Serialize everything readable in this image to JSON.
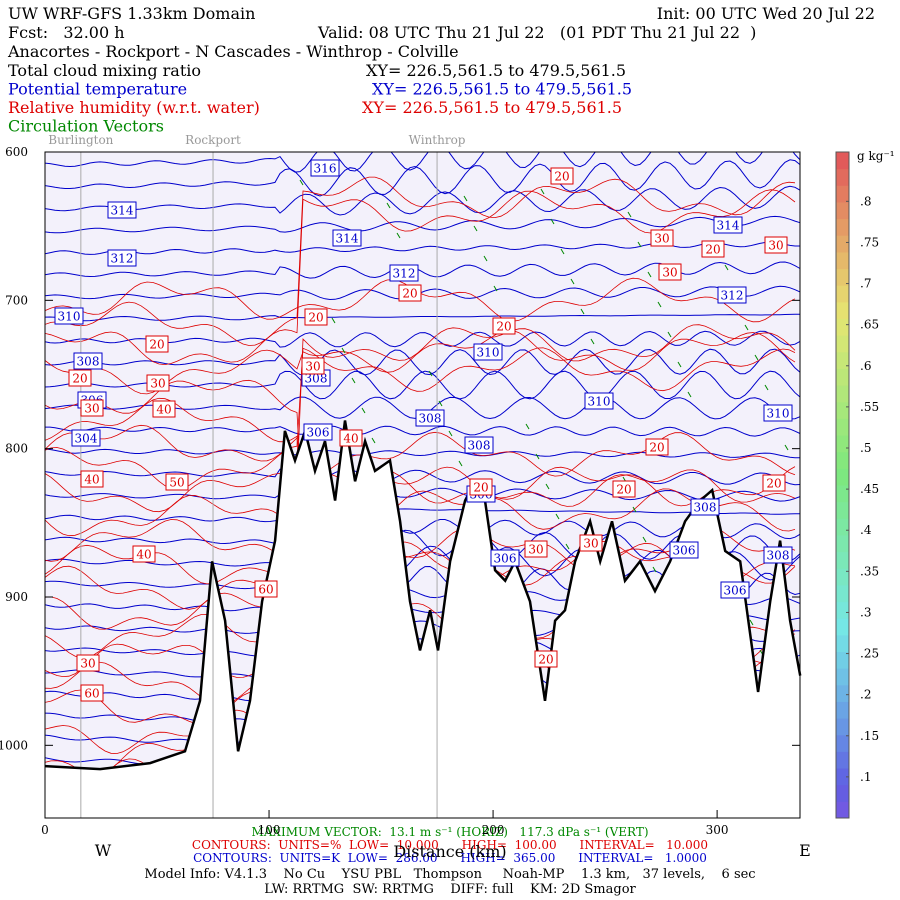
{
  "header": {
    "title": "UW WRF-GFS 1.33km Domain",
    "init": "Init: 00 UTC Wed 20 Jul 22",
    "fcst": "Fcst:   32.00 h",
    "valid": "Valid: 08 UTC Thu 21 Jul 22   (01 PDT Thu 21 Jul 22  )",
    "route": "Anacortes - Rockport - N Cascades - Winthrop - Colville",
    "fields": [
      {
        "name": "Total cloud mixing ratio",
        "xy": "XY= 226.5,561.5 to 479.5,561.5",
        "color": "#000000"
      },
      {
        "name": "Potential temperature",
        "xy": "XY= 226.5,561.5 to 479.5,561.5",
        "color": "#0000cc"
      },
      {
        "name": "Relative humidity (w.r.t. water)",
        "xy": "XY= 226.5,561.5 to 479.5,561.5",
        "color": "#dd0000"
      },
      {
        "name": "Circulation Vectors",
        "color": "#008800"
      }
    ]
  },
  "chart_data": {
    "type": "cross-section",
    "xlabel": "Distance (km)",
    "ylabel": "Pressure (hPa)",
    "west": "W",
    "east": "E",
    "xlim": [
      0,
      337
    ],
    "xticks": [
      0,
      100,
      200,
      300
    ],
    "ylim": [
      1049,
      600
    ],
    "yticks": [
      600,
      700,
      800,
      900,
      1000
    ],
    "locations": [
      {
        "name": "Burlington",
        "x": 16
      },
      {
        "name": "Rockport",
        "x": 75
      },
      {
        "name": "Winthrop",
        "x": 175
      }
    ],
    "terrain": {
      "color": "#000000",
      "x": [
        0,
        24.6,
        46.9,
        62.5,
        69.2,
        74.6,
        80.4,
        86.2,
        91.5,
        96.9,
        102.7,
        107.1,
        111.6,
        116.1,
        120.5,
        125,
        129.5,
        133.9,
        138.4,
        142.9,
        147.3,
        154,
        158.5,
        162.9,
        167.4,
        171.9,
        175.4,
        180.8,
        187.5,
        192,
        196.4,
        200.9,
        205.4,
        209.8,
        216.5,
        223.2,
        227.7,
        232.1,
        236.6,
        243.3,
        247.8,
        253.1,
        258.9,
        265.6,
        272.3,
        279,
        285.7,
        292.4,
        297.8,
        303.6,
        310.3,
        318.3,
        323.7,
        328.1,
        332.6,
        337.1
      ],
      "p": [
        1014,
        1016,
        1012,
        1004,
        970,
        876,
        916,
        1004,
        970,
        903,
        862,
        788,
        808,
        788,
        815,
        795,
        835,
        781,
        822,
        795,
        815,
        808,
        849,
        903,
        936,
        909,
        936,
        876,
        835,
        822,
        835,
        882,
        889,
        876,
        903,
        970,
        916,
        909,
        876,
        849,
        876,
        849,
        889,
        876,
        896,
        876,
        849,
        835,
        828,
        869,
        876,
        964,
        903,
        862,
        916,
        953
      ]
    },
    "theta_labels": {
      "color": "#0000cc",
      "values": [
        316,
        314,
        314,
        314,
        312,
        312,
        312,
        310,
        310,
        310,
        310,
        308,
        308,
        308,
        308,
        308,
        308,
        306,
        306,
        306,
        306,
        306,
        306,
        304
      ]
    },
    "rh_labels": {
      "color": "#dd0000",
      "values": [
        20,
        30,
        30,
        20,
        30,
        20,
        20,
        20,
        20,
        20,
        30,
        40,
        30,
        40,
        30,
        40,
        50,
        40,
        60,
        30,
        60,
        20,
        20,
        20,
        30,
        30,
        20,
        20
      ]
    },
    "colorbar": {
      "unit": "g kg⁻¹",
      "clim": [
        0.05,
        0.86
      ],
      "ticks": [
        {
          "value": 0.1,
          "label": ".1"
        },
        {
          "value": 0.15,
          "label": ".15"
        },
        {
          "value": 0.2,
          "label": ".2"
        },
        {
          "value": 0.25,
          "label": ".25"
        },
        {
          "value": 0.3,
          "label": ".3"
        },
        {
          "value": 0.35,
          "label": ".35"
        },
        {
          "value": 0.4,
          "label": ".4"
        },
        {
          "value": 0.45,
          "label": ".45"
        },
        {
          "value": 0.5,
          "label": ".5"
        },
        {
          "value": 0.55,
          "label": ".55"
        },
        {
          "value": 0.6,
          "label": ".6"
        },
        {
          "value": 0.65,
          "label": ".65"
        },
        {
          "value": 0.7,
          "label": ".7"
        },
        {
          "value": 0.75,
          "label": ".75"
        },
        {
          "value": 0.8,
          "label": ".8"
        }
      ]
    }
  },
  "footer": {
    "vector": "MAXIMUM VECTOR:  13.1 m s⁻¹ (HORIZ)   117.3 dPa s⁻¹ (VERT)",
    "rh_contours": "CONTOURS:  UNITS=%  LOW=  10.000      HIGH=  100.00      INTERVAL=   10.000",
    "theta_contours": "CONTOURS:  UNITS=K  LOW=  286.00      HIGH=  365.00      INTERVAL=   1.0000",
    "model": "Model Info: V4.1.3    No Cu    YSU PBL   Thompson     Noah-MP    1.3 km,   37 levels,    6 sec",
    "physics": "LW: RRTMG  SW: RRTMG    DIFF: full    KM: 2D Smagor"
  }
}
